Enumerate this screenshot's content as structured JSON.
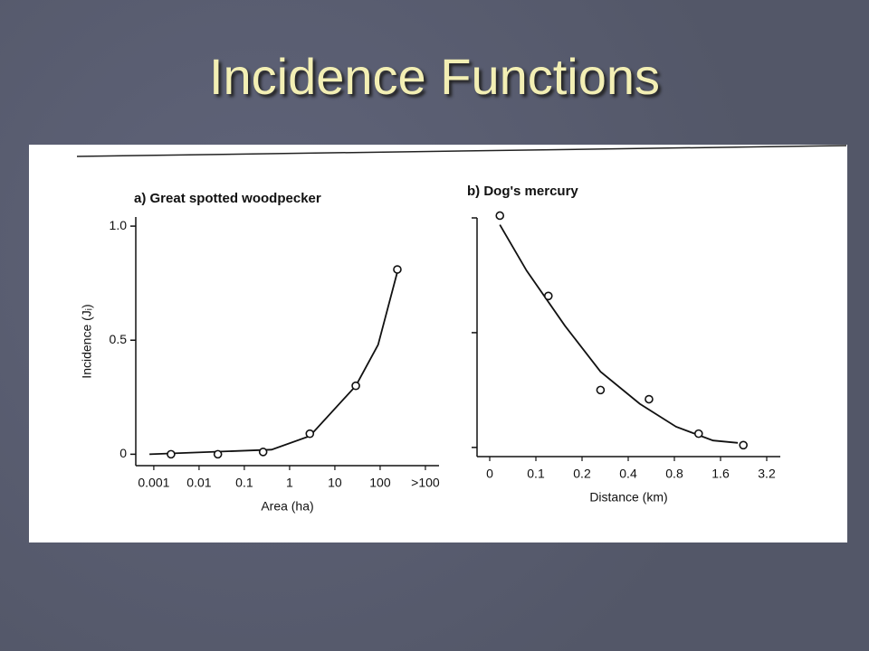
{
  "slide_title": "Incidence Functions",
  "chart_data": [
    {
      "type": "scatter",
      "title": "a) Great spotted woodpecker",
      "x_label": "Area (ha)",
      "y_label": "Incidence (Jᵢ)",
      "xscale": "log",
      "xlim": [
        0.0004,
        2000
      ],
      "xticks": [
        0.001,
        0.01,
        0.1,
        1,
        10,
        100,
        {
          "value": 1000,
          "label": ">100"
        }
      ],
      "ylim": [
        -0.05,
        1.04
      ],
      "yticks": [
        0,
        0.5,
        {
          "value": 1,
          "label": "1.0"
        }
      ],
      "ytick_labels": true,
      "color": "#111111",
      "x": [
        0.0024,
        0.026,
        0.26,
        2.8,
        29,
        240
      ],
      "values": [
        0,
        0,
        0.01,
        0.09,
        0.3,
        0.81
      ],
      "fit": {
        "x": [
          0.0008,
          0.4,
          2.8,
          29,
          90,
          240
        ],
        "values": [
          0,
          0.02,
          0.08,
          0.3,
          0.48,
          0.8
        ]
      }
    },
    {
      "type": "scatter",
      "title": "b) Dog's mercury",
      "x_label": "Distance (km)",
      "xscale": "doubling",
      "xlim": [
        0,
        3.2
      ],
      "xticks": [
        0,
        0.1,
        0.2,
        0.4,
        0.8,
        1.6,
        3.2
      ],
      "ylim": [
        -0.04,
        1.0
      ],
      "yticks": [
        0,
        0.5,
        1
      ],
      "ytick_labels": false,
      "color": "#111111",
      "x": [
        0.022,
        0.127,
        0.28,
        0.58,
        1.22,
        2.39
      ],
      "values": [
        1.01,
        0.66,
        0.25,
        0.21,
        0.06,
        0.01
      ],
      "fit": {
        "x": [
          0.022,
          0.08,
          0.163,
          0.28,
          0.5,
          0.83,
          1.47,
          2.2
        ],
        "values": [
          0.97,
          0.77,
          0.53,
          0.33,
          0.19,
          0.09,
          0.03,
          0.02
        ]
      }
    }
  ]
}
